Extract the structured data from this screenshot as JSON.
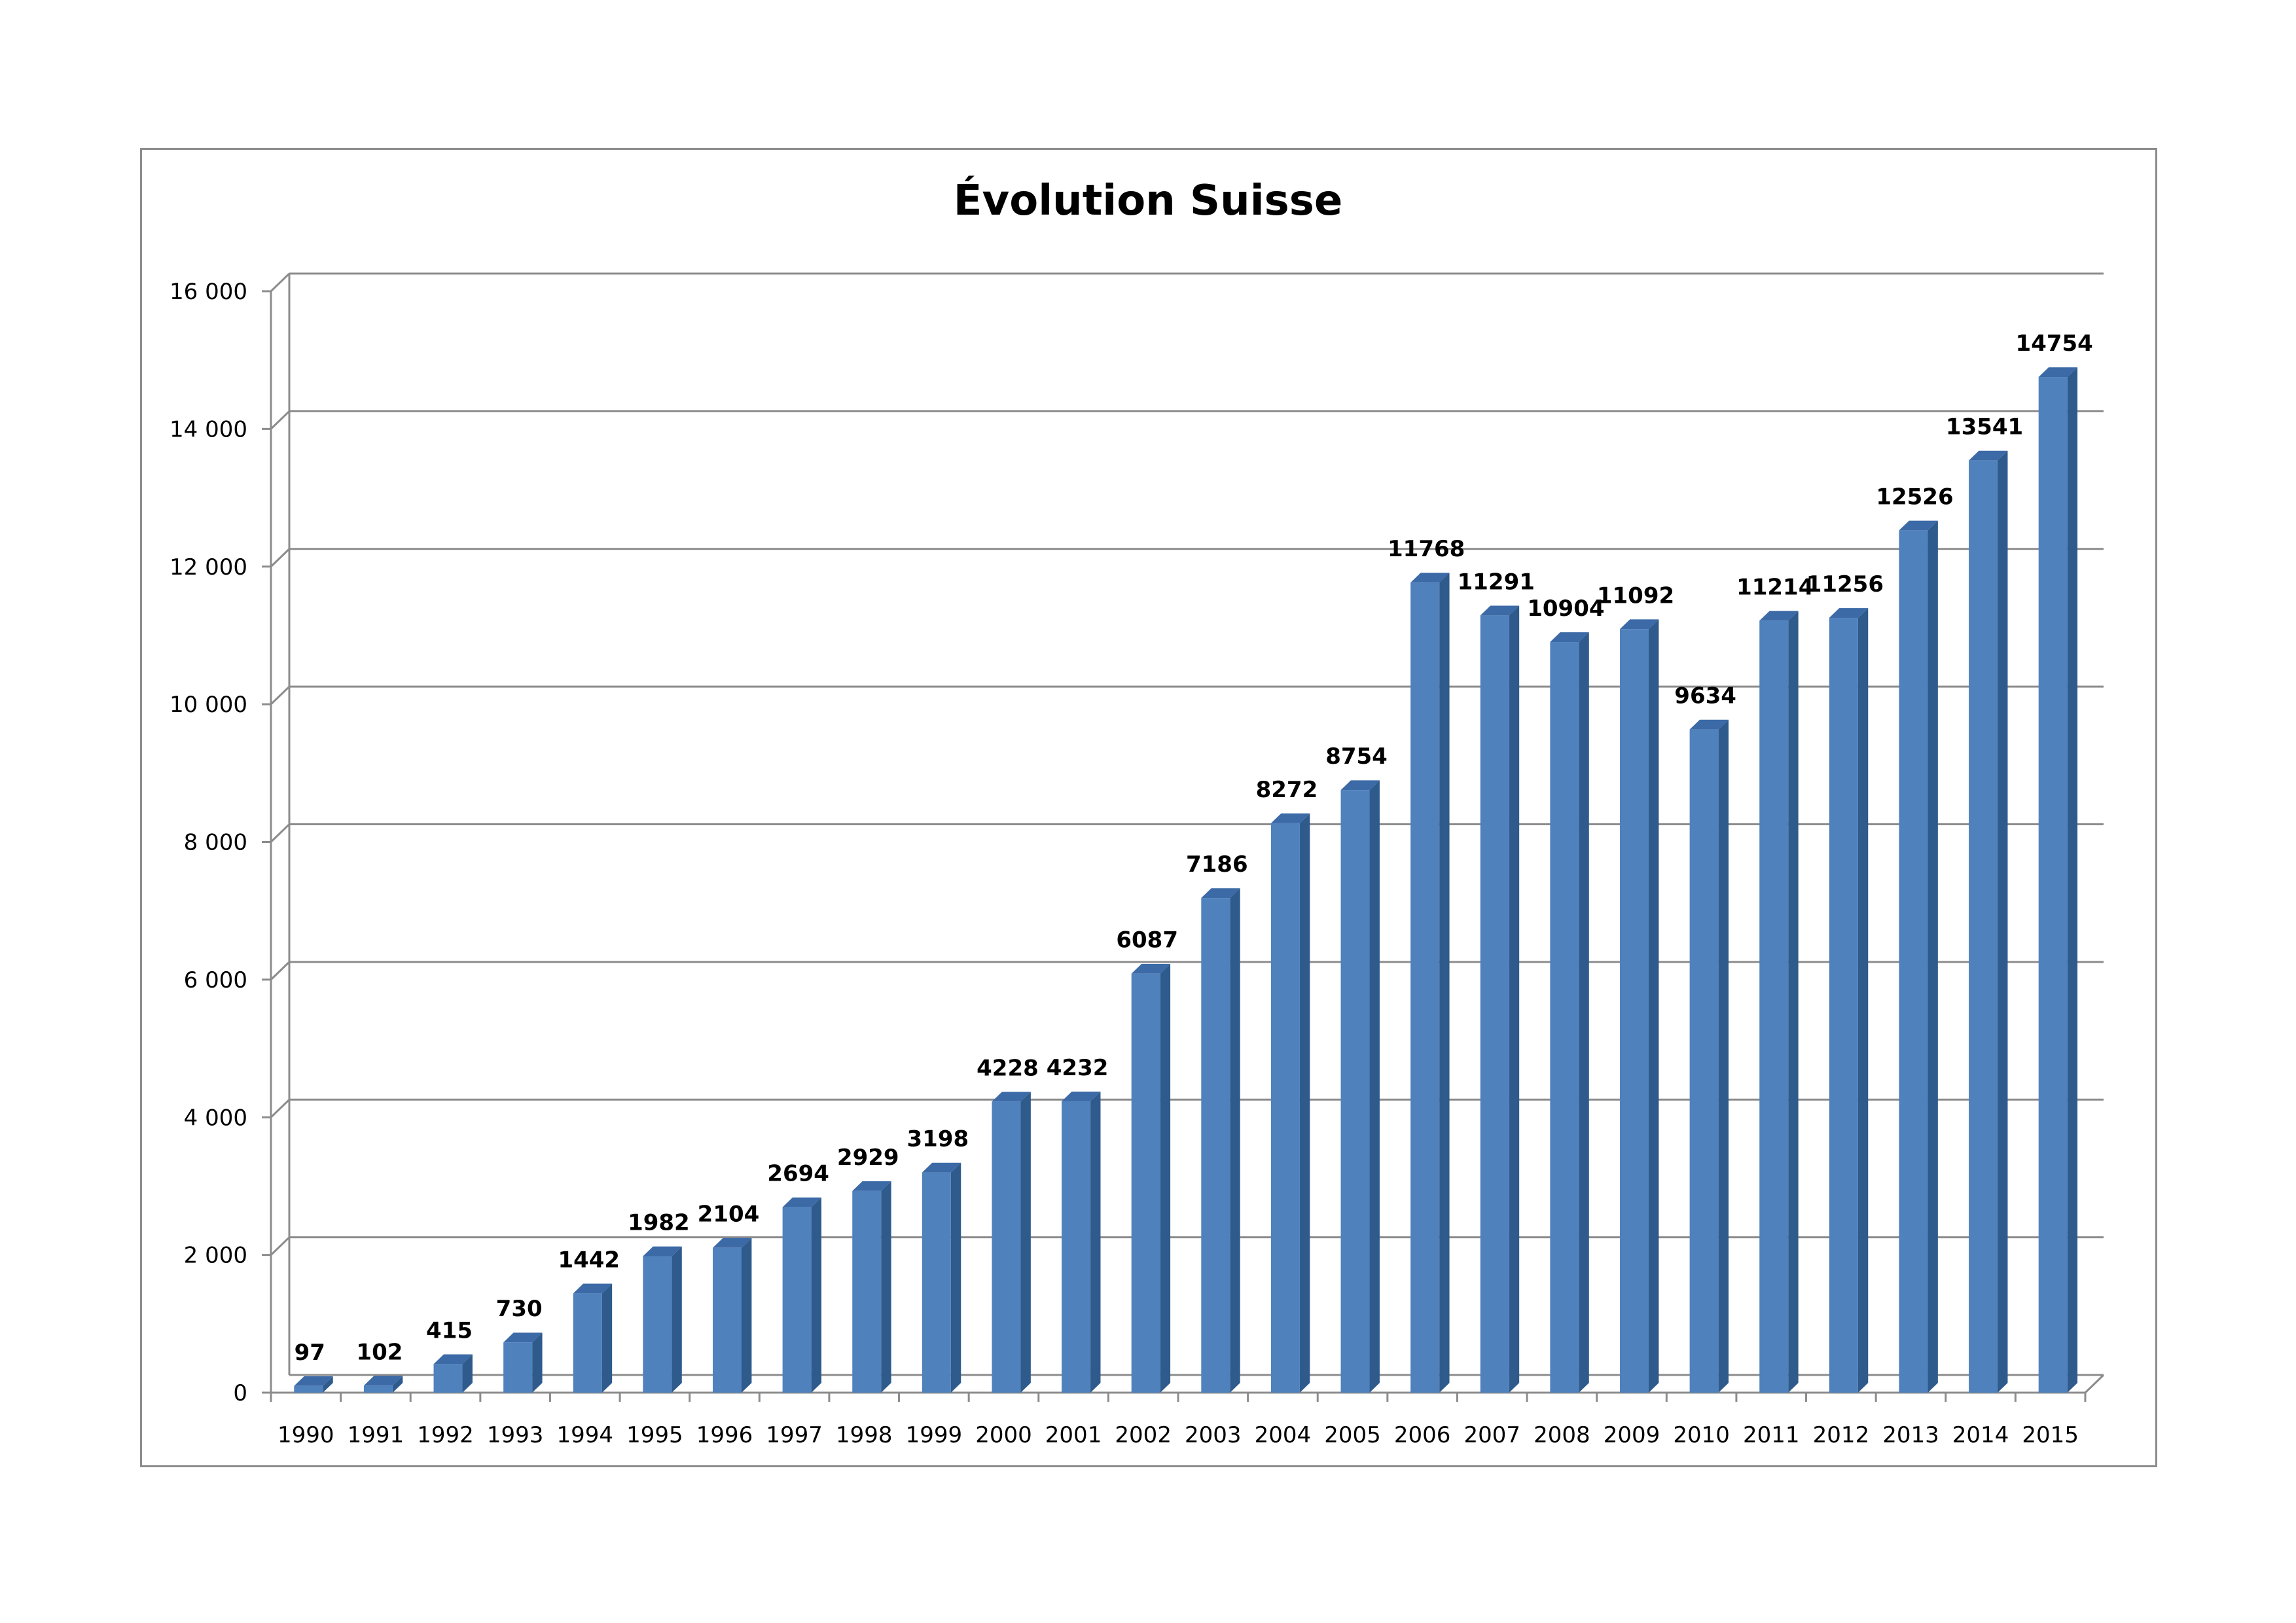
{
  "chart_data": {
    "type": "bar",
    "title": "Évolution Suisse",
    "xlabel": "",
    "ylabel": "",
    "categories": [
      "1990",
      "1991",
      "1992",
      "1993",
      "1994",
      "1995",
      "1996",
      "1997",
      "1998",
      "1999",
      "2000",
      "2001",
      "2002",
      "2003",
      "2004",
      "2005",
      "2006",
      "2007",
      "2008",
      "2009",
      "2010",
      "2011",
      "2012",
      "2013",
      "2014",
      "2015"
    ],
    "values": [
      97,
      102,
      415,
      730,
      1442,
      1982,
      2104,
      2694,
      2929,
      3198,
      4228,
      4232,
      6087,
      7186,
      8272,
      8754,
      11768,
      11291,
      10904,
      11092,
      9634,
      11214,
      11256,
      12526,
      13541,
      14754
    ],
    "ylim": [
      0,
      16000
    ],
    "yticks": [
      0,
      2000,
      4000,
      6000,
      8000,
      10000,
      12000,
      14000,
      16000
    ],
    "ytick_labels": [
      "0",
      "2 000",
      "4 000",
      "6 000",
      "8 000",
      "10 000",
      "12 000",
      "14 000",
      "16 000"
    ],
    "grid": true,
    "legend": "none",
    "bar_color": "#4f81bd",
    "bar_side_color": "#2f5a8c",
    "bar_top_color": "#3c6aa6",
    "grid_color": "#8c8c8c"
  }
}
